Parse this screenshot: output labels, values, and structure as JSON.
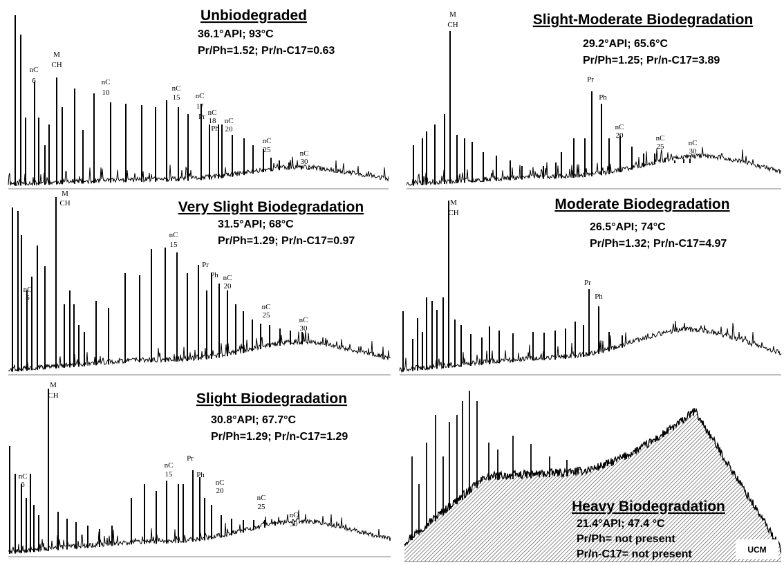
{
  "chart_data": [
    {
      "type": "line",
      "title": "Unbiodegraded",
      "info": [
        "36.1°API; 93°C",
        "Pr/Ph=1.52; Pr/n-C17=0.63"
      ],
      "peak_labels": [
        {
          "a": "nC",
          "b": "6"
        },
        {
          "a": "M",
          "b": "CH"
        },
        {
          "a": "nC",
          "b": "10"
        },
        {
          "a": "nC",
          "b": "15"
        },
        {
          "a": "nC",
          "b": "17"
        },
        {
          "a": "nC",
          "b": "18"
        },
        {
          "a": "Pr",
          "b": ""
        },
        {
          "a": "Ph",
          "b": ""
        },
        {
          "a": "nC",
          "b": "20"
        },
        {
          "a": "nC",
          "b": "25"
        },
        {
          "a": "nC",
          "b": "30"
        }
      ],
      "ratios": {
        "api": 36.1,
        "temp_c": 93,
        "pr_ph": 1.52,
        "pr_nc17": 0.63
      }
    },
    {
      "type": "line",
      "title": "Slight-Moderate Biodegradation",
      "info": [
        "29.2°API; 65.6°C",
        "Pr/Ph=1.25; Pr/n-C17=3.89"
      ],
      "peak_labels": [
        {
          "a": "M",
          "b": "CH"
        },
        {
          "a": "Pr",
          "b": ""
        },
        {
          "a": "Ph",
          "b": ""
        },
        {
          "a": "nC",
          "b": "20"
        },
        {
          "a": "nC",
          "b": "25"
        },
        {
          "a": "nC",
          "b": "30"
        }
      ],
      "ratios": {
        "api": 29.2,
        "temp_c": 65.6,
        "pr_ph": 1.25,
        "pr_nc17": 3.89
      }
    },
    {
      "type": "line",
      "title": "Very Slight Biodegradation",
      "info": [
        "31.5°API; 68°C",
        "Pr/Ph=1.29; Pr/n-C17=0.97"
      ],
      "peak_labels": [
        {
          "a": "nC",
          "b": "6"
        },
        {
          "a": "M",
          "b": "CH"
        },
        {
          "a": "nC",
          "b": "15"
        },
        {
          "a": "Pr",
          "b": ""
        },
        {
          "a": "Ph",
          "b": ""
        },
        {
          "a": "nC",
          "b": "20"
        },
        {
          "a": "nC",
          "b": "25"
        },
        {
          "a": "nC",
          "b": "30"
        }
      ],
      "ratios": {
        "api": 31.5,
        "temp_c": 68,
        "pr_ph": 1.29,
        "pr_nc17": 0.97
      }
    },
    {
      "type": "line",
      "title": "Moderate Biodegradation",
      "info": [
        "26.5°API; 74°C",
        "Pr/Ph=1.32; Pr/n-C17=4.97"
      ],
      "peak_labels": [
        {
          "a": "M",
          "b": "CH"
        },
        {
          "a": "Pr",
          "b": ""
        },
        {
          "a": "Ph",
          "b": ""
        }
      ],
      "ratios": {
        "api": 26.5,
        "temp_c": 74,
        "pr_ph": 1.32,
        "pr_nc17": 4.97
      }
    },
    {
      "type": "line",
      "title": "Slight Biodegradation",
      "info": [
        "30.8°API; 67.7°C",
        "Pr/Ph=1.29; Pr/n-C17=1.29"
      ],
      "peak_labels": [
        {
          "a": "nC",
          "b": "6"
        },
        {
          "a": "M",
          "b": "CH"
        },
        {
          "a": "nC",
          "b": "15"
        },
        {
          "a": "Pr",
          "b": ""
        },
        {
          "a": "Ph",
          "b": ""
        },
        {
          "a": "nC",
          "b": "20"
        },
        {
          "a": "nC",
          "b": "25"
        },
        {
          "a": "nC",
          "b": "30"
        }
      ],
      "ratios": {
        "api": 30.8,
        "temp_c": 67.7,
        "pr_ph": 1.29,
        "pr_nc17": 1.29
      }
    },
    {
      "type": "area",
      "title": "Heavy Biodegradation",
      "info": [
        "21.4°API; 47.4 °C",
        "Pr/Ph= not present",
        "Pr/n-C17= not present"
      ],
      "peak_labels": [],
      "area_label": "UCM",
      "ratios": {
        "api": 21.4,
        "temp_c": 47.4,
        "pr_ph": "not present",
        "pr_nc17": "not present"
      }
    }
  ]
}
